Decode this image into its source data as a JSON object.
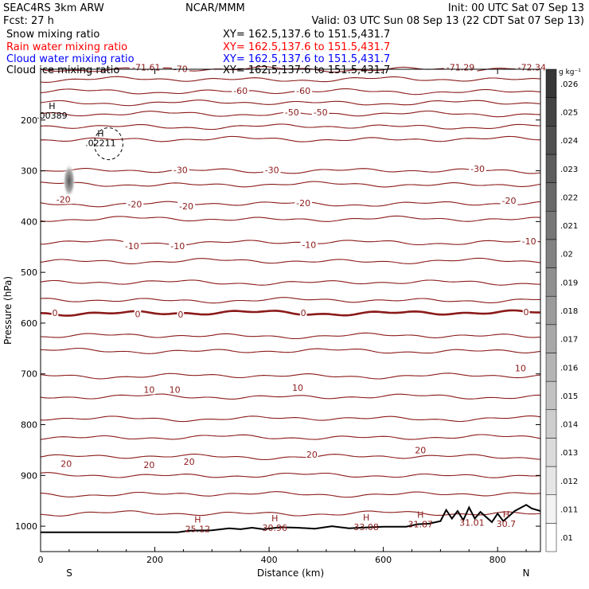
{
  "header": {
    "model": "SEAC4RS  3km ARW",
    "fcst": "Fcst:   27 h",
    "producer": "NCAR/MMM",
    "init": "Init: 00 UTC Sat 07 Sep 13",
    "valid": "Valid: 03 UTC Sun 08 Sep 13 (22 CDT Sat 07 Sep 13)",
    "fields": [
      {
        "name": "Snow mixing ratio",
        "xy": "XY=  162.5,137.6 to 151.5,431.7",
        "color": "#000000"
      },
      {
        "name": "Rain water mixing ratio",
        "xy": "XY=  162.5,137.6 to 151.5,431.7",
        "color": "#ff0000"
      },
      {
        "name": "Cloud water mixing ratio",
        "xy": "XY=  162.5,137.6 to 151.5,431.7",
        "color": "#0000ff"
      },
      {
        "name": "Cloud ice mixing ratio",
        "xy": "XY=  162.5,137.6 to 151.5,431.7",
        "color": "#000000"
      }
    ]
  },
  "chart_data": {
    "type": "contour",
    "xlabel": "Distance (km)",
    "ylabel": "Pressure (hPa)",
    "xlim": [
      0,
      875
    ],
    "ylim": [
      1050,
      100
    ],
    "x_ticks": [
      "0",
      "200",
      "400",
      "600",
      "800"
    ],
    "y_ticks": [
      "200",
      "300",
      "400",
      "500",
      "600",
      "700",
      "800",
      "900",
      "1000"
    ],
    "x_tick_values": [
      0,
      200,
      400,
      600,
      800
    ],
    "y_tick_values": [
      200,
      300,
      400,
      500,
      600,
      700,
      800,
      900,
      1000
    ],
    "x_end_labels": {
      "left": "S",
      "right": "N"
    },
    "colorbar": {
      "units": "g kg⁻¹",
      "labels": [
        ".01",
        ".011",
        ".012",
        ".013",
        ".014",
        ".015",
        ".016",
        ".017",
        ".018",
        ".019",
        ".02",
        ".021",
        ".022",
        ".023",
        ".024",
        ".025",
        ".026"
      ],
      "values": [
        0.01,
        0.011,
        0.012,
        0.013,
        0.014,
        0.015,
        0.016,
        0.017,
        0.018,
        0.019,
        0.02,
        0.021,
        0.022,
        0.023,
        0.024,
        0.025,
        0.026
      ]
    },
    "isotherms": [
      {
        "label": "-70",
        "p": 100
      },
      {
        "label": "",
        "p": 120
      },
      {
        "label": "-60",
        "p": 144
      },
      {
        "label": "",
        "p": 166
      },
      {
        "label": "-50",
        "p": 188
      },
      {
        "label": "",
        "p": 213
      },
      {
        "label": "",
        "p": 238
      },
      {
        "label": "-30",
        "p": 300
      },
      {
        "label": "",
        "p": 327
      },
      {
        "label": "-20",
        "p": 365
      },
      {
        "label": "",
        "p": 395
      },
      {
        "label": "-10",
        "p": 441
      },
      {
        "label": "",
        "p": 478
      },
      {
        "label": "",
        "p": 520
      },
      {
        "label": "",
        "p": 555
      },
      {
        "label": "0",
        "p": 580
      },
      {
        "label": "",
        "p": 625
      },
      {
        "label": "",
        "p": 655
      },
      {
        "label": "10",
        "p": 704
      },
      {
        "label": "",
        "p": 745
      },
      {
        "label": "",
        "p": 788
      },
      {
        "label": "",
        "p": 825
      },
      {
        "label": "20",
        "p": 863
      },
      {
        "label": "",
        "p": 900
      },
      {
        "label": "",
        "p": 937
      },
      {
        "label": "",
        "p": 975
      }
    ],
    "contour_labels": [
      {
        "text": "-71.61",
        "x": 185,
        "p": 96
      },
      {
        "text": "-70",
        "x": 245,
        "p": 99
      },
      {
        "text": "-71.29",
        "x": 735,
        "p": 96
      },
      {
        "text": "-72.34",
        "x": 860,
        "p": 96
      },
      {
        "text": "-60",
        "x": 350,
        "p": 142
      },
      {
        "text": "-60",
        "x": 460,
        "p": 142
      },
      {
        "text": "-50",
        "x": 440,
        "p": 185
      },
      {
        "text": "-50",
        "x": 490,
        "p": 185
      },
      {
        "text": "-30",
        "x": 245,
        "p": 298
      },
      {
        "text": "-30",
        "x": 405,
        "p": 298
      },
      {
        "text": "-30",
        "x": 765,
        "p": 296
      },
      {
        "text": "-20",
        "x": 40,
        "p": 356
      },
      {
        "text": "-20",
        "x": 165,
        "p": 366
      },
      {
        "text": "-20",
        "x": 255,
        "p": 370
      },
      {
        "text": "-20",
        "x": 460,
        "p": 363
      },
      {
        "text": "-20",
        "x": 820,
        "p": 359
      },
      {
        "text": "-10",
        "x": 160,
        "p": 448
      },
      {
        "text": "-10",
        "x": 240,
        "p": 448
      },
      {
        "text": "-10",
        "x": 470,
        "p": 446
      },
      {
        "text": "-10",
        "x": 855,
        "p": 439
      },
      {
        "text": "0",
        "x": 25,
        "p": 580
      },
      {
        "text": "0",
        "x": 170,
        "p": 582
      },
      {
        "text": "0",
        "x": 245,
        "p": 583
      },
      {
        "text": "0",
        "x": 460,
        "p": 580
      },
      {
        "text": "0",
        "x": 850,
        "p": 578
      },
      {
        "text": "10",
        "x": 840,
        "p": 689
      },
      {
        "text": "10",
        "x": 190,
        "p": 731
      },
      {
        "text": "10",
        "x": 235,
        "p": 731
      },
      {
        "text": "10",
        "x": 450,
        "p": 727
      },
      {
        "text": "20",
        "x": 45,
        "p": 877
      },
      {
        "text": "20",
        "x": 190,
        "p": 879
      },
      {
        "text": "20",
        "x": 260,
        "p": 873
      },
      {
        "text": "20",
        "x": 475,
        "p": 859
      },
      {
        "text": "20",
        "x": 665,
        "p": 850
      }
    ],
    "highs": [
      {
        "label": "H",
        "value": ".00389",
        "x": 20,
        "p": 188
      },
      {
        "label": "H",
        "value": ".02211",
        "x": 105,
        "p": 242
      },
      {
        "label": "H",
        "value": "25.12",
        "x": 275,
        "p": 1002
      },
      {
        "label": "H",
        "value": "30.96",
        "x": 410,
        "p": 1000
      },
      {
        "label": "H",
        "value": "33.08",
        "x": 570,
        "p": 998
      },
      {
        "label": "H",
        "value": "31.87",
        "x": 665,
        "p": 993
      },
      {
        "label": "",
        "value": "31.01",
        "x": 755,
        "p": 990
      },
      {
        "label": "H",
        "value": "30.7",
        "x": 815,
        "p": 992
      }
    ],
    "ice_blob": {
      "x": 50,
      "p": 320,
      "max_value": 0.023
    },
    "terrain_surface_hpa": [
      [
        0,
        1012
      ],
      [
        100,
        1012
      ],
      [
        240,
        1012
      ],
      [
        260,
        1009
      ],
      [
        300,
        1008
      ],
      [
        330,
        1004
      ],
      [
        350,
        1006
      ],
      [
        370,
        1003
      ],
      [
        390,
        1006
      ],
      [
        420,
        1002
      ],
      [
        450,
        1003
      ],
      [
        480,
        1005
      ],
      [
        510,
        1000
      ],
      [
        540,
        1004
      ],
      [
        560,
        1003
      ],
      [
        600,
        1001
      ],
      [
        640,
        1001
      ],
      [
        660,
        996
      ],
      [
        680,
        995
      ],
      [
        700,
        990
      ],
      [
        710,
        968
      ],
      [
        720,
        985
      ],
      [
        730,
        970
      ],
      [
        740,
        988
      ],
      [
        750,
        963
      ],
      [
        760,
        985
      ],
      [
        770,
        972
      ],
      [
        790,
        992
      ],
      [
        800,
        975
      ],
      [
        810,
        990
      ],
      [
        830,
        970
      ],
      [
        850,
        958
      ],
      [
        860,
        965
      ],
      [
        875,
        970
      ]
    ]
  }
}
